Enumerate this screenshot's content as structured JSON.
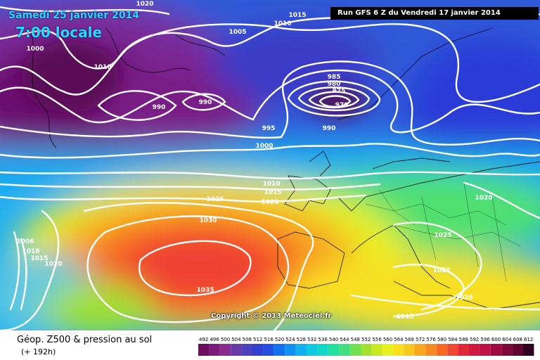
{
  "header": {
    "date": "Samedi 25 janvier 2014",
    "time": "7:00 locale",
    "run": "Run GFS 6 Z du Vendredi 17 janvier 2014"
  },
  "map": {
    "copyright": "Copyright © 2013 Meteociel.fr",
    "isobar_labels": [
      "1020",
      "1015",
      "1010",
      "1005",
      "1000",
      "1010",
      "990",
      "990",
      "985",
      "980",
      "975",
      "970",
      "995",
      "990",
      "1000",
      "1010",
      "1015",
      "1020",
      "1025",
      "1030",
      "1035",
      "1020",
      "1025",
      "1020",
      "1020",
      "1015",
      "1016",
      "1015",
      "1020",
      "1006"
    ]
  },
  "legend": {
    "title": "Géop. Z500 & pression au sol",
    "subtitle": "(+ 192h)",
    "scale_values": [
      "492",
      "496",
      "500",
      "504",
      "508",
      "512",
      "516",
      "520",
      "524",
      "528",
      "532",
      "536",
      "540",
      "544",
      "548",
      "552",
      "556",
      "560",
      "564",
      "568",
      "572",
      "576",
      "580",
      "584",
      "588",
      "592",
      "596",
      "600",
      "604",
      "608",
      "612"
    ],
    "scale_colors": [
      "#6a0f5e",
      "#7a1a7a",
      "#8a2a90",
      "#6a3aa8",
      "#4a40c0",
      "#3040d0",
      "#2050e0",
      "#1070f0",
      "#1090f0",
      "#10b0f0",
      "#10c8e0",
      "#10d8c8",
      "#20e0a0",
      "#40e080",
      "#70e050",
      "#a0e030",
      "#c8e820",
      "#e8f020",
      "#f8e020",
      "#f8c820",
      "#f8a820",
      "#f88820",
      "#f86820",
      "#f04830",
      "#e02838",
      "#d01840",
      "#c01048",
      "#a00840",
      "#800838",
      "#600430",
      "#300020"
    ]
  }
}
